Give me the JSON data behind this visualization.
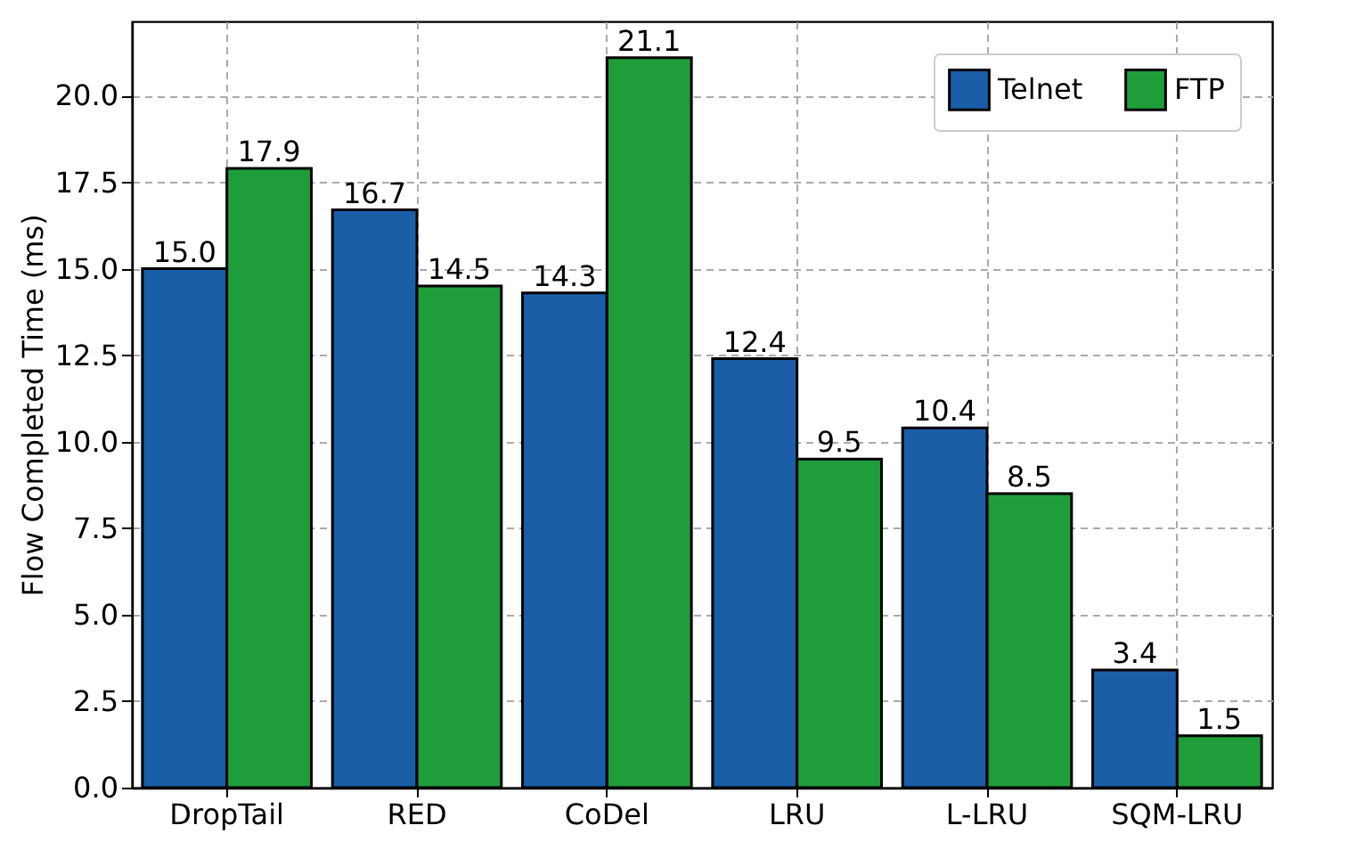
{
  "chart_data": {
    "type": "bar",
    "ylabel": "Flow Completed Time (ms)",
    "categories": [
      "DropTail",
      "RED",
      "CoDel",
      "LRU",
      "L-LRU",
      "SQM-LRU"
    ],
    "series": [
      {
        "name": "Telnet",
        "color": "#1a5ea8",
        "values": [
          15.0,
          16.7,
          14.3,
          12.4,
          10.4,
          3.4
        ],
        "value_labels": [
          "15.0",
          "16.7",
          "14.3",
          "12.4",
          "10.4",
          "3.4"
        ]
      },
      {
        "name": "FTP",
        "color": "#1f9d3a",
        "values": [
          17.9,
          14.5,
          21.1,
          9.5,
          8.5,
          1.5
        ],
        "value_labels": [
          "17.9",
          "14.5",
          "21.1",
          "9.5",
          "8.5",
          "1.5"
        ]
      }
    ],
    "ylim": [
      0,
      22.15
    ],
    "yticks": [
      {
        "value": 0,
        "label": "0.0"
      },
      2.5,
      {
        "value": 5,
        "label": "5.0"
      },
      7.5,
      {
        "value": 10,
        "label": "10.0"
      },
      12.5,
      {
        "value": 15,
        "label": "15.0"
      },
      17.5,
      {
        "value": 20,
        "label": "20.0"
      }
    ],
    "grid": true,
    "legend": "top right"
  }
}
